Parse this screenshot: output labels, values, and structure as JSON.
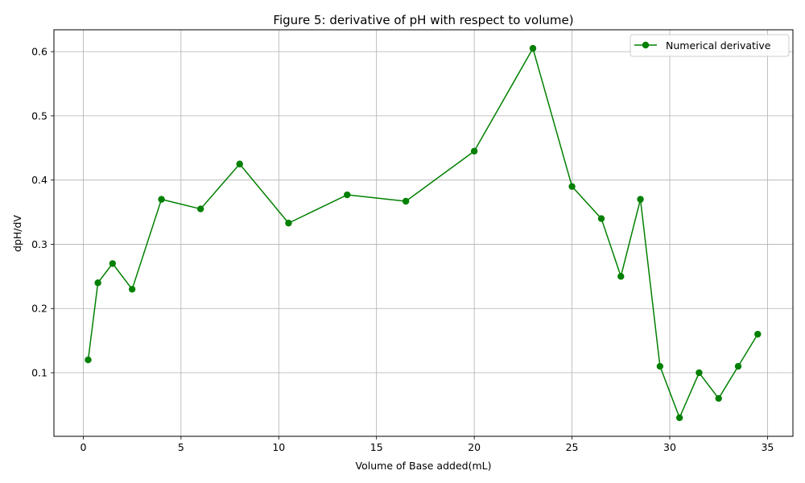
{
  "chart_data": {
    "type": "line",
    "title": "Figure 5: derivative of pH with respect to volume)",
    "xlabel": "Volume of Base added(mL)",
    "ylabel": "dpH/dV",
    "xlim": [
      -1.5,
      36.3
    ],
    "ylim": [
      0.001,
      0.634
    ],
    "xticks": [
      0,
      5,
      10,
      15,
      20,
      25,
      30,
      35
    ],
    "yticks": [
      0.1,
      0.2,
      0.3,
      0.4,
      0.5,
      0.6
    ],
    "xtick_labels": [
      "0",
      "5",
      "10",
      "15",
      "20",
      "25",
      "30",
      "35"
    ],
    "ytick_labels": [
      "0.1",
      "0.2",
      "0.3",
      "0.4",
      "0.5",
      "0.6"
    ],
    "grid": true,
    "legend_position": "top-right",
    "series": [
      {
        "name": "Numerical derivative",
        "color": "#008000",
        "marker": "circle",
        "x": [
          0.25,
          0.75,
          1.5,
          2.5,
          4,
          6,
          8,
          10.5,
          13.5,
          16.5,
          20,
          23,
          25,
          26.5,
          27.5,
          28.5,
          29.5,
          30.5,
          31.5,
          32.5,
          33.5,
          34.5
        ],
        "y": [
          0.12,
          0.24,
          0.27,
          0.23,
          0.37,
          0.355,
          0.425,
          0.333,
          0.377,
          0.367,
          0.445,
          0.605,
          0.39,
          0.34,
          0.25,
          0.37,
          0.11,
          0.03,
          0.1,
          0.06,
          0.11,
          0.16
        ]
      }
    ]
  }
}
